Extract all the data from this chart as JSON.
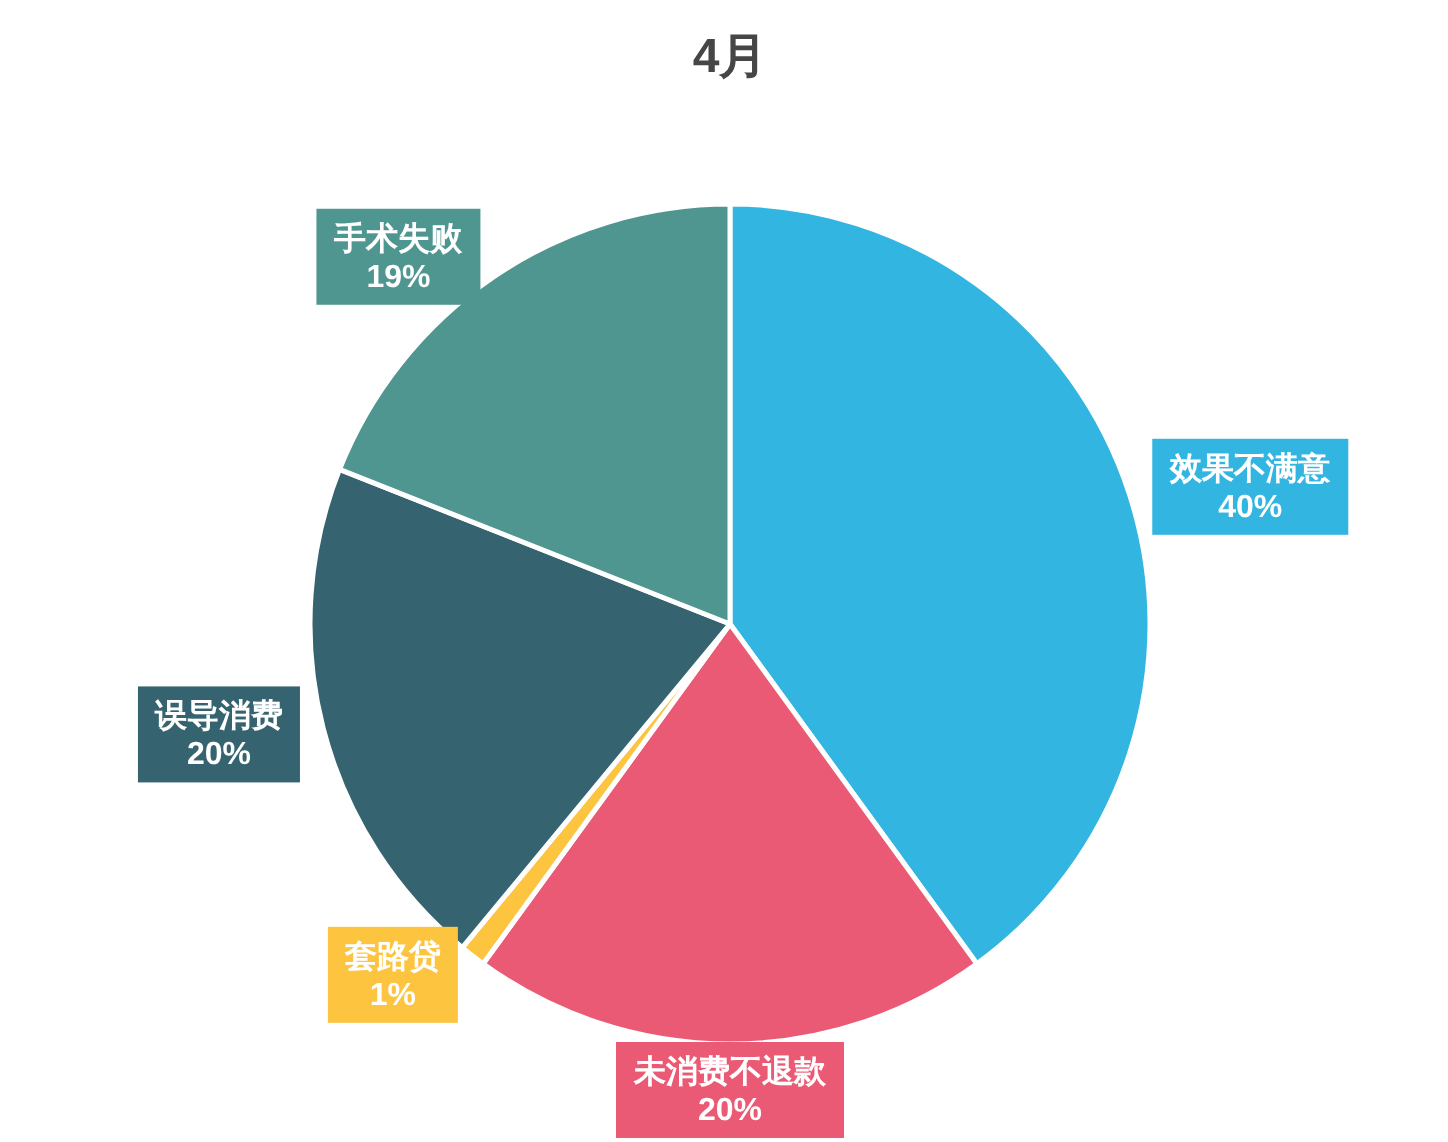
{
  "chart_data": {
    "type": "pie",
    "title": "4月",
    "categories": [
      "效果不满意",
      "未消费不退款",
      "套路贷",
      "误导消费",
      "手术失败"
    ],
    "values": [
      40,
      20,
      1,
      20,
      19
    ],
    "value_labels": [
      "40%",
      "20%",
      "1%",
      "20%",
      "19%"
    ],
    "colors": [
      "#33b5e2",
      "#eb5a74",
      "#fcc43f",
      "#356470",
      "#4f9690"
    ]
  }
}
